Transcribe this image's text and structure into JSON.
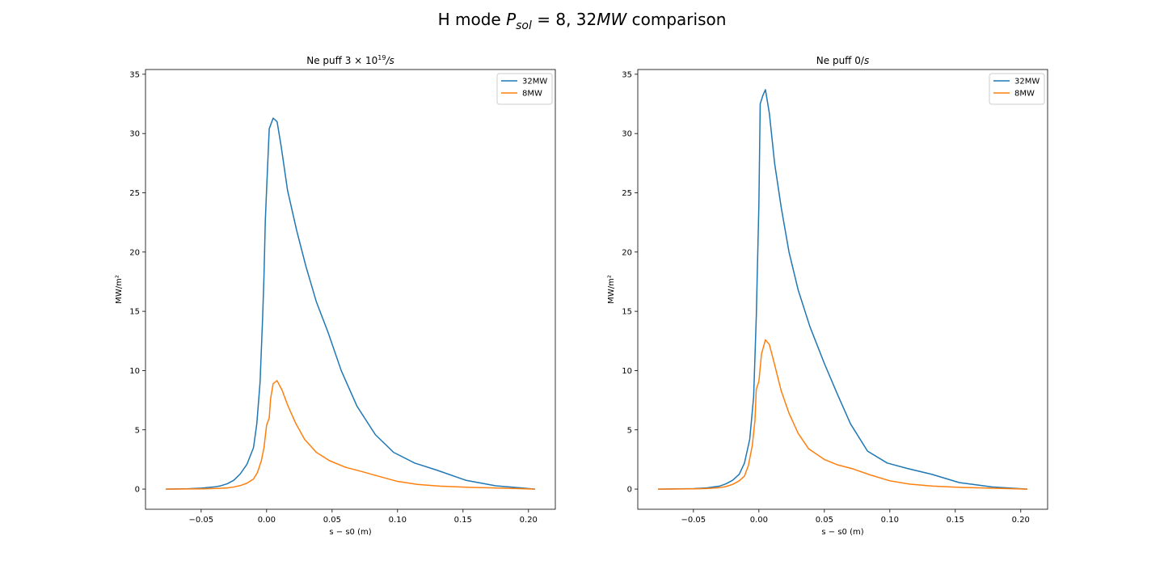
{
  "figure": {
    "title": "H mode P_sol = 8, 32MW comparison",
    "title_parts": {
      "prefix": "H mode ",
      "var": "P",
      "sub": "sol",
      "suffix": " = 8, 32",
      "unit": "MW",
      "tail": " comparison"
    }
  },
  "colors": {
    "32MW": "#1f77b4",
    "8MW": "#ff7f0e"
  },
  "chart_data": [
    {
      "type": "line",
      "title": "Ne puff 3 × 10^19/s",
      "title_parts": {
        "prefix": "Ne puff 3 × 10",
        "sup": "19",
        "suffix": "/s"
      },
      "xlabel": "s − s0 (m)",
      "ylabel": "MW/m²",
      "xlim": [
        -0.0925,
        0.2205
      ],
      "ylim": [
        -1.7,
        35.4
      ],
      "xticks": [
        "−0.05",
        "0.00",
        "0.05",
        "0.10",
        "0.15",
        "0.20"
      ],
      "xtick_values": [
        -0.05,
        0.0,
        0.05,
        0.1,
        0.15,
        0.2
      ],
      "yticks": [
        "0",
        "5",
        "10",
        "15",
        "20",
        "25",
        "30",
        "35"
      ],
      "ytick_values": [
        0,
        5,
        10,
        15,
        20,
        25,
        30,
        35
      ],
      "legend": "top-right",
      "series": [
        {
          "name": "32MW",
          "color": "#1f77b4",
          "points": [
            [
              -0.077,
              0.0
            ],
            [
              -0.06,
              0.03
            ],
            [
              -0.05,
              0.08
            ],
            [
              -0.04,
              0.18
            ],
            [
              -0.035,
              0.28
            ],
            [
              -0.03,
              0.45
            ],
            [
              -0.025,
              0.75
            ],
            [
              -0.02,
              1.3
            ],
            [
              -0.015,
              2.1
            ],
            [
              -0.01,
              3.5
            ],
            [
              -0.0075,
              5.5
            ],
            [
              -0.005,
              9.0
            ],
            [
              -0.003,
              14.6
            ],
            [
              -0.002,
              18.0
            ],
            [
              -0.001,
              22.6
            ],
            [
              0.0,
              25.3
            ],
            [
              0.002,
              30.4
            ],
            [
              0.005,
              31.3
            ],
            [
              0.008,
              31.0
            ],
            [
              0.011,
              29.0
            ],
            [
              0.016,
              25.2
            ],
            [
              0.023,
              21.8
            ],
            [
              0.03,
              18.8
            ],
            [
              0.038,
              15.8
            ],
            [
              0.047,
              13.2
            ],
            [
              0.057,
              10.0
            ],
            [
              0.069,
              7.0
            ],
            [
              0.083,
              4.6
            ],
            [
              0.097,
              3.1
            ],
            [
              0.113,
              2.2
            ],
            [
              0.13,
              1.6
            ],
            [
              0.152,
              0.75
            ],
            [
              0.175,
              0.28
            ],
            [
              0.205,
              0.0
            ]
          ]
        },
        {
          "name": "8MW",
          "color": "#ff7f0e",
          "points": [
            [
              -0.077,
              0.0
            ],
            [
              -0.05,
              0.02
            ],
            [
              -0.04,
              0.05
            ],
            [
              -0.03,
              0.1
            ],
            [
              -0.025,
              0.18
            ],
            [
              -0.02,
              0.3
            ],
            [
              -0.015,
              0.5
            ],
            [
              -0.01,
              0.85
            ],
            [
              -0.007,
              1.4
            ],
            [
              -0.004,
              2.4
            ],
            [
              -0.002,
              3.5
            ],
            [
              0.0,
              5.4
            ],
            [
              0.002,
              6.0
            ],
            [
              0.003,
              7.6
            ],
            [
              0.005,
              8.9
            ],
            [
              0.008,
              9.15
            ],
            [
              0.012,
              8.3
            ],
            [
              0.016,
              7.1
            ],
            [
              0.022,
              5.6
            ],
            [
              0.029,
              4.2
            ],
            [
              0.038,
              3.1
            ],
            [
              0.048,
              2.4
            ],
            [
              0.06,
              1.85
            ],
            [
              0.072,
              1.5
            ],
            [
              0.085,
              1.1
            ],
            [
              0.1,
              0.65
            ],
            [
              0.115,
              0.4
            ],
            [
              0.132,
              0.25
            ],
            [
              0.155,
              0.15
            ],
            [
              0.18,
              0.08
            ],
            [
              0.205,
              0.0
            ]
          ]
        }
      ]
    },
    {
      "type": "line",
      "title": "Ne puff 0/s",
      "title_parts": {
        "prefix": "Ne puff 0/",
        "sup": "",
        "suffix": "s"
      },
      "xlabel": "s − s0 (m)",
      "ylabel": "MW/m²",
      "xlim": [
        -0.0925,
        0.2205
      ],
      "ylim": [
        -1.7,
        35.4
      ],
      "xticks": [
        "−0.05",
        "0.00",
        "0.05",
        "0.10",
        "0.15",
        "0.20"
      ],
      "xtick_values": [
        -0.05,
        0.0,
        0.05,
        0.1,
        0.15,
        0.2
      ],
      "yticks": [
        "0",
        "5",
        "10",
        "15",
        "20",
        "25",
        "30",
        "35"
      ],
      "ytick_values": [
        0,
        5,
        10,
        15,
        20,
        25,
        30,
        35
      ],
      "legend": "top-right",
      "series": [
        {
          "name": "32MW",
          "color": "#1f77b4",
          "points": [
            [
              -0.077,
              0.0
            ],
            [
              -0.05,
              0.04
            ],
            [
              -0.04,
              0.1
            ],
            [
              -0.03,
              0.25
            ],
            [
              -0.025,
              0.45
            ],
            [
              -0.02,
              0.75
            ],
            [
              -0.015,
              1.25
            ],
            [
              -0.011,
              2.2
            ],
            [
              -0.007,
              4.2
            ],
            [
              -0.004,
              7.8
            ],
            [
              -0.002,
              14.5
            ],
            [
              0.0,
              24.0
            ],
            [
              0.001,
              32.5
            ],
            [
              0.003,
              33.2
            ],
            [
              0.005,
              33.7
            ],
            [
              0.008,
              31.7
            ],
            [
              0.012,
              27.5
            ],
            [
              0.017,
              23.8
            ],
            [
              0.023,
              20.0
            ],
            [
              0.03,
              16.8
            ],
            [
              0.039,
              13.7
            ],
            [
              0.05,
              10.6
            ],
            [
              0.06,
              8.0
            ],
            [
              0.07,
              5.5
            ],
            [
              0.083,
              3.2
            ],
            [
              0.098,
              2.2
            ],
            [
              0.113,
              1.75
            ],
            [
              0.132,
              1.25
            ],
            [
              0.153,
              0.55
            ],
            [
              0.178,
              0.18
            ],
            [
              0.205,
              0.0
            ]
          ]
        },
        {
          "name": "8MW",
          "color": "#ff7f0e",
          "points": [
            [
              -0.077,
              0.0
            ],
            [
              -0.05,
              0.02
            ],
            [
              -0.04,
              0.05
            ],
            [
              -0.03,
              0.12
            ],
            [
              -0.025,
              0.22
            ],
            [
              -0.02,
              0.4
            ],
            [
              -0.015,
              0.7
            ],
            [
              -0.011,
              1.1
            ],
            [
              -0.008,
              2.0
            ],
            [
              -0.005,
              3.7
            ],
            [
              -0.003,
              5.8
            ],
            [
              -0.002,
              8.4
            ],
            [
              0.0,
              9.1
            ],
            [
              0.002,
              11.4
            ],
            [
              0.005,
              12.6
            ],
            [
              0.008,
              12.2
            ],
            [
              0.012,
              10.5
            ],
            [
              0.017,
              8.3
            ],
            [
              0.023,
              6.4
            ],
            [
              0.03,
              4.7
            ],
            [
              0.038,
              3.4
            ],
            [
              0.05,
              2.5
            ],
            [
              0.06,
              2.05
            ],
            [
              0.072,
              1.7
            ],
            [
              0.085,
              1.2
            ],
            [
              0.1,
              0.7
            ],
            [
              0.115,
              0.42
            ],
            [
              0.133,
              0.25
            ],
            [
              0.155,
              0.14
            ],
            [
              0.18,
              0.07
            ],
            [
              0.205,
              0.0
            ]
          ]
        }
      ]
    }
  ]
}
